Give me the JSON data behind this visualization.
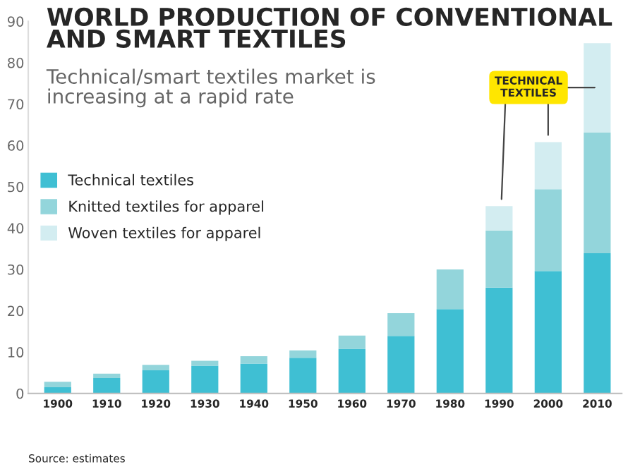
{
  "chart_data": {
    "type": "bar",
    "stacked": true,
    "title": "WORLD PRODUCTION OF CONVENTIONAL\nAND SMART TEXTILES",
    "subtitle": "Technical/smart textiles market is\nincreasing at a rapid rate",
    "categories": [
      "1900",
      "1910",
      "1920",
      "1930",
      "1940",
      "1950",
      "1960",
      "1970",
      "1980",
      "1990",
      "2000",
      "2010"
    ],
    "series": [
      {
        "name": "Technical textiles",
        "color": "#3fbfd3",
        "values": [
          1.5,
          3.7,
          5.6,
          6.7,
          7.2,
          8.6,
          10.8,
          13.9,
          20.4,
          25.6,
          29.6,
          33.9
        ]
      },
      {
        "name": "Knitted textiles for apparel",
        "color": "#93d5db",
        "values": [
          1.3,
          1.1,
          1.3,
          1.2,
          1.8,
          1.8,
          3.2,
          5.5,
          9.6,
          13.8,
          19.8,
          29.2
        ]
      },
      {
        "name": "Woven textiles for apparel",
        "color": "#d3edf1",
        "values": [
          0,
          0,
          0,
          0,
          0,
          0,
          0,
          0,
          0,
          5.9,
          11.4,
          21.6
        ]
      }
    ],
    "ylim": [
      0,
      90
    ],
    "yticks": [
      0,
      10,
      20,
      30,
      40,
      50,
      60,
      70,
      80,
      90
    ],
    "legend": "left",
    "grid": false,
    "annotations": [
      "TECHNICAL\nTEXTILES",
      "Source: estimates"
    ]
  }
}
